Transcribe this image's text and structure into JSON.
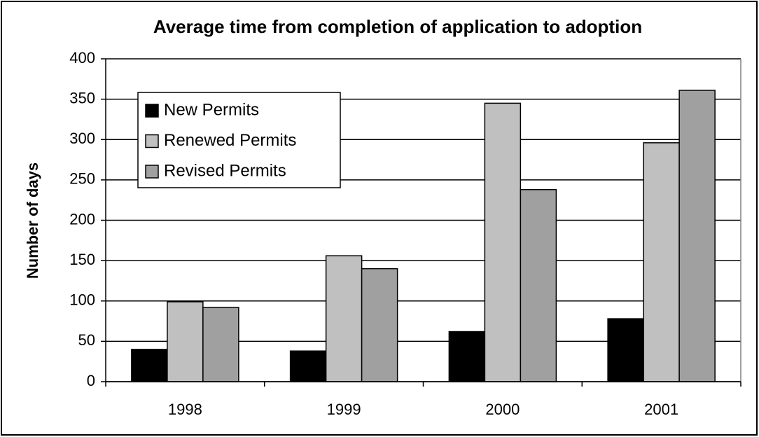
{
  "chart_data": {
    "type": "bar",
    "title": "Average time from completion of application to adoption",
    "y_label": "Number of days",
    "categories": [
      "1998",
      "1999",
      "2000",
      "2001"
    ],
    "series": [
      {
        "name": "New Permits",
        "color": "#000000",
        "values": [
          40,
          38,
          62,
          78
        ]
      },
      {
        "name": "Renewed Permits",
        "color": "#c0c0c0",
        "values": [
          99,
          156,
          345,
          296
        ]
      },
      {
        "name": "Revised Permits",
        "color": "#a0a0a0",
        "values": [
          92,
          140,
          238,
          361
        ]
      }
    ],
    "ylim": [
      0,
      400
    ],
    "yticks": [
      0,
      50,
      100,
      150,
      200,
      250,
      300,
      350,
      400
    ],
    "grid": true,
    "legend": "upper left"
  }
}
